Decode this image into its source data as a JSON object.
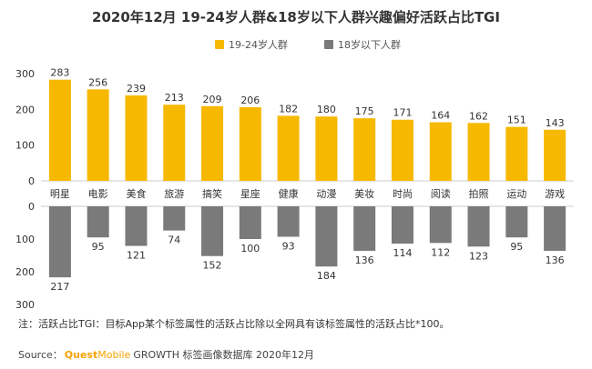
{
  "chart_data": {
    "type": "bar",
    "title": "2020年12月 19-24岁人群&18岁以下人群兴趣偏好活跃占比TGI",
    "categories": [
      "明星",
      "电影",
      "美食",
      "旅游",
      "搞笑",
      "星座",
      "健康",
      "动漫",
      "美妆",
      "时尚",
      "阅读",
      "拍照",
      "运动",
      "游戏"
    ],
    "series": [
      {
        "name": "19-24岁人群",
        "values": [
          283,
          256,
          239,
          213,
          209,
          206,
          182,
          180,
          175,
          171,
          164,
          162,
          151,
          143
        ],
        "color": "#f7b800"
      },
      {
        "name": "18岁以下人群",
        "values": [
          217,
          95,
          121,
          74,
          152,
          100,
          93,
          184,
          136,
          114,
          112,
          123,
          95,
          136
        ],
        "color": "#7a7a7a"
      }
    ],
    "top_axis": {
      "ylim": [
        0,
        300
      ],
      "ticks": [
        "0",
        "100",
        "200",
        "300"
      ]
    },
    "bottom_axis": {
      "ylim": [
        0,
        300
      ],
      "ticks": [
        "0",
        "100",
        "200",
        "300"
      ],
      "direction": "down"
    },
    "legend_position": "top-center",
    "grid": false
  },
  "footnote": "注：活跃占比TGI：目标App某个标签属性的活跃占比除以全网具有该标签属性的活跃占比*100。",
  "source": {
    "label": "Source：",
    "brand_quest": "Quest",
    "brand_mobile": "Mobile",
    "text": "GROWTH 标签画像数据库 2020年12月"
  }
}
